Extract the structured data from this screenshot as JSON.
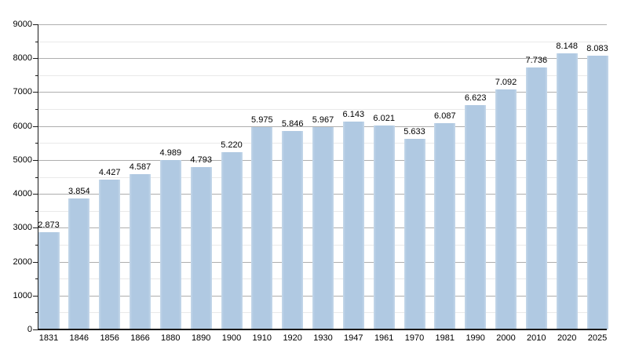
{
  "chart_data": {
    "type": "bar",
    "title": "",
    "xlabel": "",
    "ylabel": "",
    "categories": [
      "1831",
      "1846",
      "1856",
      "1866",
      "1880",
      "1890",
      "1900",
      "1910",
      "1920",
      "1930",
      "1947",
      "1961",
      "1970",
      "1981",
      "1990",
      "2000",
      "2010",
      "2020",
      "2025"
    ],
    "values": [
      2873,
      3854,
      4427,
      4587,
      4989,
      4793,
      5220,
      5975,
      5846,
      5967,
      6143,
      6021,
      5633,
      6087,
      6623,
      7092,
      7736,
      8148,
      8083
    ],
    "value_labels": [
      "2.873",
      "3.854",
      "4.427",
      "4.587",
      "4.989",
      "4.793",
      "5.220",
      "5.975",
      "5.846",
      "5.967",
      "6.143",
      "6.021",
      "5.633",
      "6.087",
      "6.623",
      "7.092",
      "7.736",
      "8.148",
      "8.083"
    ],
    "y_tick_labels": [
      "0",
      "1000",
      "2000",
      "3000",
      "4000",
      "5000",
      "6000",
      "7000",
      "8000",
      "9000"
    ],
    "ylim": [
      0,
      9000
    ],
    "y_major_step": 1000,
    "y_minor_step": 500,
    "grid": "horizontal major+minor",
    "legend": "none",
    "colors": {
      "bar": "#b0c9e2",
      "bar_edge": "#c6d8ea",
      "grid_major": "#aeaeae",
      "grid_minor": "#e9e9e9",
      "axis": "#1a1a1a",
      "text": "#000000",
      "background": "#ffffff"
    }
  }
}
